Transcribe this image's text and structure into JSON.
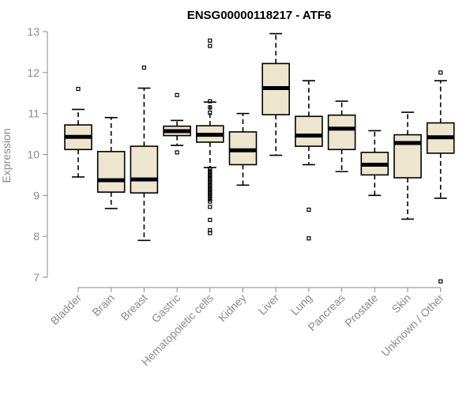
{
  "chart_data": {
    "type": "boxplot",
    "title": "ENSG00000118217 - ATF6",
    "ylabel": "Expression",
    "xlabel": "",
    "ylim": [
      6.8,
      13.1
    ],
    "yticks": [
      7,
      8,
      9,
      10,
      11,
      12,
      13
    ],
    "box_fill": "#ede6cf",
    "categories": [
      "Bladder",
      "Brain",
      "Breast",
      "Gastric",
      "Hematopoietic cells",
      "Kidney",
      "Liver",
      "Lung",
      "Pancreas",
      "Prostate",
      "Skin",
      "Unknown / Other"
    ],
    "boxes": [
      {
        "whisker_low": 9.45,
        "q1": 10.12,
        "median": 10.43,
        "q3": 10.72,
        "whisker_high": 11.1,
        "outliers": [
          11.6
        ]
      },
      {
        "whisker_low": 8.68,
        "q1": 9.08,
        "median": 9.37,
        "q3": 10.07,
        "whisker_high": 10.9,
        "outliers": []
      },
      {
        "whisker_low": 7.9,
        "q1": 9.06,
        "median": 9.39,
        "q3": 10.2,
        "whisker_high": 11.62,
        "outliers": [
          12.12
        ]
      },
      {
        "whisker_low": 10.22,
        "q1": 10.46,
        "median": 10.57,
        "q3": 10.69,
        "whisker_high": 10.83,
        "outliers": [
          10.05,
          11.45
        ]
      },
      {
        "whisker_low": 9.68,
        "q1": 10.3,
        "median": 10.48,
        "q3": 10.7,
        "whisker_high": 11.28,
        "outliers": [
          12.78,
          12.65,
          11.3,
          11.15,
          11.02,
          9.65,
          9.6,
          9.55,
          9.5,
          9.45,
          9.4,
          9.35,
          9.3,
          9.25,
          9.2,
          9.15,
          9.1,
          9.05,
          9.0,
          8.95,
          8.9,
          8.85,
          8.72,
          8.4,
          8.15,
          8.08
        ]
      },
      {
        "whisker_low": 9.25,
        "q1": 9.75,
        "median": 10.1,
        "q3": 10.55,
        "whisker_high": 11.0,
        "outliers": []
      },
      {
        "whisker_low": 9.98,
        "q1": 10.97,
        "median": 11.62,
        "q3": 12.22,
        "whisker_high": 12.95,
        "outliers": []
      },
      {
        "whisker_low": 9.75,
        "q1": 10.2,
        "median": 10.46,
        "q3": 10.93,
        "whisker_high": 11.8,
        "outliers": [
          8.65,
          7.95
        ]
      },
      {
        "whisker_low": 9.58,
        "q1": 10.12,
        "median": 10.63,
        "q3": 10.96,
        "whisker_high": 11.3,
        "outliers": []
      },
      {
        "whisker_low": 9.0,
        "q1": 9.5,
        "median": 9.75,
        "q3": 10.05,
        "whisker_high": 10.58,
        "outliers": []
      },
      {
        "whisker_low": 8.42,
        "q1": 9.43,
        "median": 10.28,
        "q3": 10.48,
        "whisker_high": 11.03,
        "outliers": []
      },
      {
        "whisker_low": 8.93,
        "q1": 10.03,
        "median": 10.42,
        "q3": 10.77,
        "whisker_high": 11.8,
        "outliers": [
          12.0,
          6.9
        ]
      }
    ]
  }
}
